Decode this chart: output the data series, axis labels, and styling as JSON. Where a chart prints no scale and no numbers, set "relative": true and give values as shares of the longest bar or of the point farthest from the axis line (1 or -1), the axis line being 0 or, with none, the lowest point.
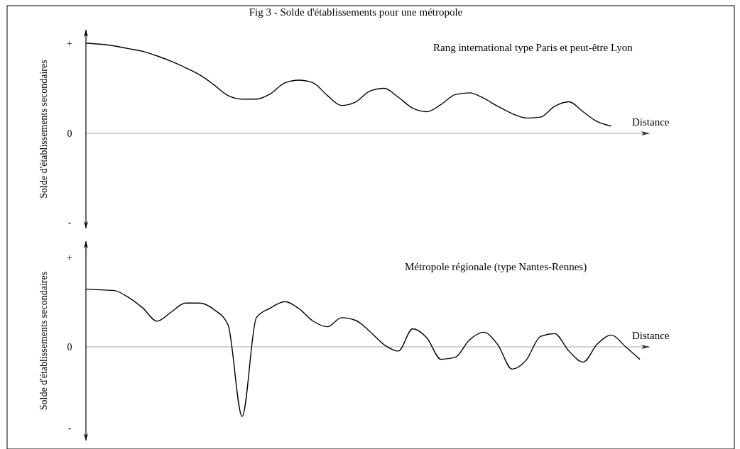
{
  "chart_data": [
    {
      "type": "line",
      "relative": true,
      "title": "Fig 3 - Solde d'établissements pour une métropole",
      "ylabel": "Solde d'établissements secondaires",
      "xlabel": "Distance",
      "annotations": [
        "Rang international type Paris et peut-être Lyon",
        "+",
        "0",
        "-"
      ],
      "categories": [
        null,
        null,
        null,
        null,
        null,
        null,
        null,
        null,
        null,
        null,
        null,
        null,
        null,
        null,
        null,
        null,
        null,
        null,
        null,
        null,
        null,
        null,
        null,
        null,
        null,
        null,
        null,
        null,
        null,
        null,
        null,
        null,
        null,
        null,
        null,
        null,
        null,
        null,
        null,
        null
      ],
      "series": [
        {
          "color": "#000000",
          "values": [
            1.0,
            0.99,
            0.97,
            0.94,
            0.91,
            0.86,
            0.8,
            0.73,
            0.65,
            0.54,
            0.42,
            0.38,
            0.38,
            0.44,
            0.56,
            0.59,
            0.56,
            0.42,
            0.31,
            0.35,
            0.47,
            0.5,
            0.4,
            0.28,
            0.24,
            0.32,
            0.43,
            0.45,
            0.39,
            0.3,
            0.22,
            0.17,
            0.18,
            0.3,
            0.35,
            0.24,
            0.13,
            0.08,
            null,
            null
          ]
        }
      ],
      "grid": false
    },
    {
      "type": "line",
      "relative": true,
      "ylabel": "Solde d'établissements secondaires",
      "xlabel": "Distance",
      "annotations": [
        "Métropole régionale (type Nantes-Rennes)",
        "+",
        "0",
        "-"
      ],
      "categories": [
        null,
        null,
        null,
        null,
        null,
        null,
        null,
        null,
        null,
        null,
        null,
        null,
        null,
        null,
        null,
        null,
        null,
        null,
        null,
        null,
        null,
        null,
        null,
        null,
        null,
        null,
        null,
        null,
        null,
        null,
        null,
        null,
        null,
        null,
        null,
        null,
        null,
        null,
        null,
        null
      ],
      "series": [
        {
          "color": "#000000",
          "values": [
            0.83,
            0.82,
            0.81,
            0.71,
            0.56,
            0.37,
            0.5,
            0.63,
            0.63,
            0.54,
            0.32,
            -1.0,
            0.42,
            0.56,
            0.65,
            0.55,
            0.37,
            0.29,
            0.42,
            0.38,
            0.22,
            0.03,
            -0.06,
            0.26,
            0.13,
            -0.18,
            -0.15,
            0.1,
            0.21,
            0.03,
            -0.32,
            -0.19,
            0.15,
            0.19,
            -0.06,
            -0.22,
            0.04,
            0.17,
            0.0,
            -0.18
          ]
        }
      ],
      "grid": false
    }
  ]
}
